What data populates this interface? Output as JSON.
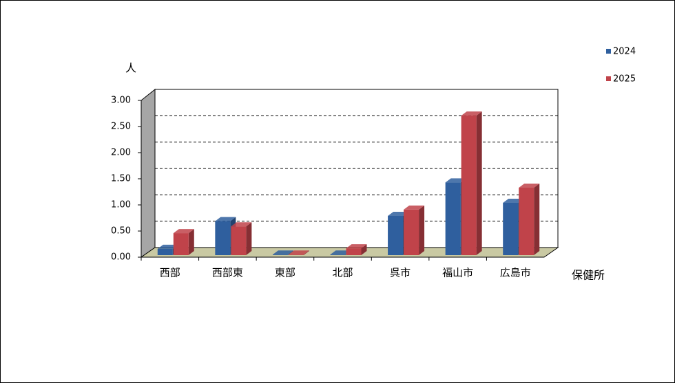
{
  "chart_data": {
    "type": "bar3d",
    "y_label": "人",
    "x_label": "保健所",
    "categories": [
      "西部",
      "西部東",
      "東部",
      "北部",
      "呉市",
      "福山市",
      "広島市"
    ],
    "series": [
      {
        "name": "2024",
        "color": "#2f5f9e",
        "values": [
          0.12,
          0.65,
          0.01,
          0.01,
          0.75,
          1.39,
          1.0
        ]
      },
      {
        "name": "2025",
        "color": "#c0434a",
        "values": [
          0.42,
          0.55,
          0.01,
          0.13,
          0.87,
          2.67,
          1.29
        ]
      }
    ],
    "ylim": [
      0,
      3
    ],
    "yticks": [
      {
        "value": 0,
        "label": "0.00"
      },
      {
        "value": 0.5,
        "label": "0.50"
      },
      {
        "value": 1,
        "label": "1.00"
      },
      {
        "value": 1.5,
        "label": "1.50"
      },
      {
        "value": 2,
        "label": "2.00"
      },
      {
        "value": 2.5,
        "label": "2.50"
      },
      {
        "value": 3,
        "label": "3.00"
      }
    ],
    "grid": true
  }
}
